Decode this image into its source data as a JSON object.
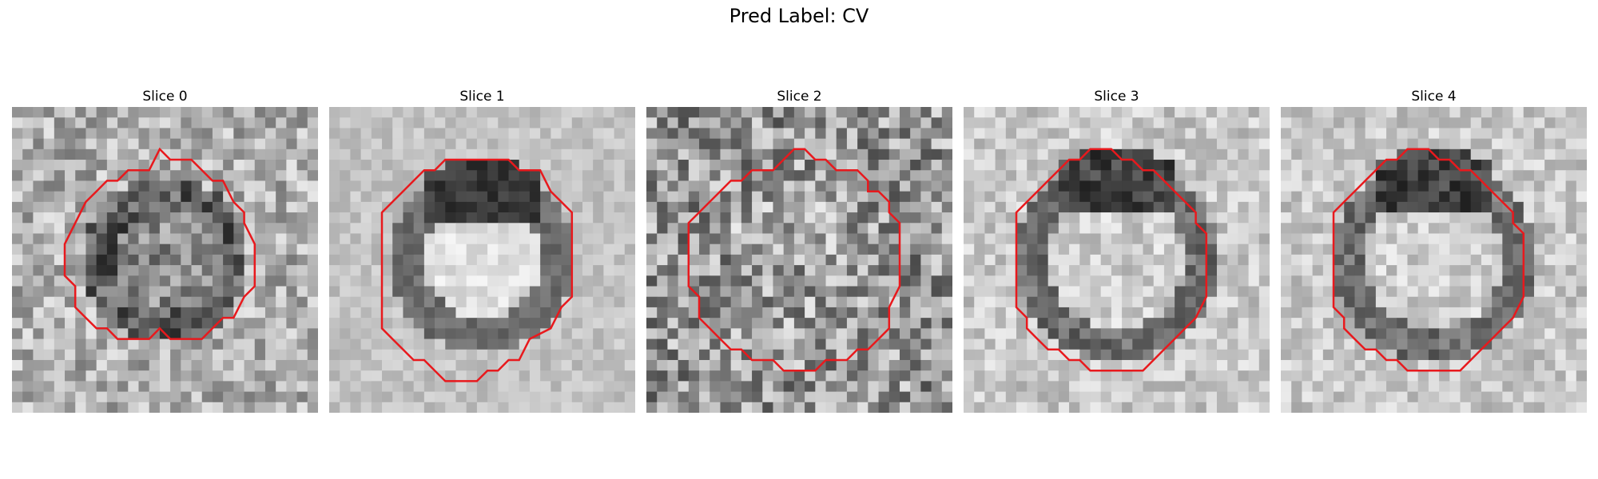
{
  "figure": {
    "title": "Pred Label: CV"
  },
  "panels": [
    {
      "title": "Slice 0",
      "contour_color": "#e8191d",
      "style": "grainy-dark-ring"
    },
    {
      "title": "Slice 1",
      "contour_color": "#e8191d",
      "style": "bright-core-dark-cap"
    },
    {
      "title": "Slice 2",
      "contour_color": "#e8191d",
      "style": "noisy-uniform"
    },
    {
      "title": "Slice 3",
      "contour_color": "#e8191d",
      "style": "bright-core-dark-cap"
    },
    {
      "title": "Slice 4",
      "contour_color": "#e8191d",
      "style": "bright-core-dark-cap"
    }
  ]
}
